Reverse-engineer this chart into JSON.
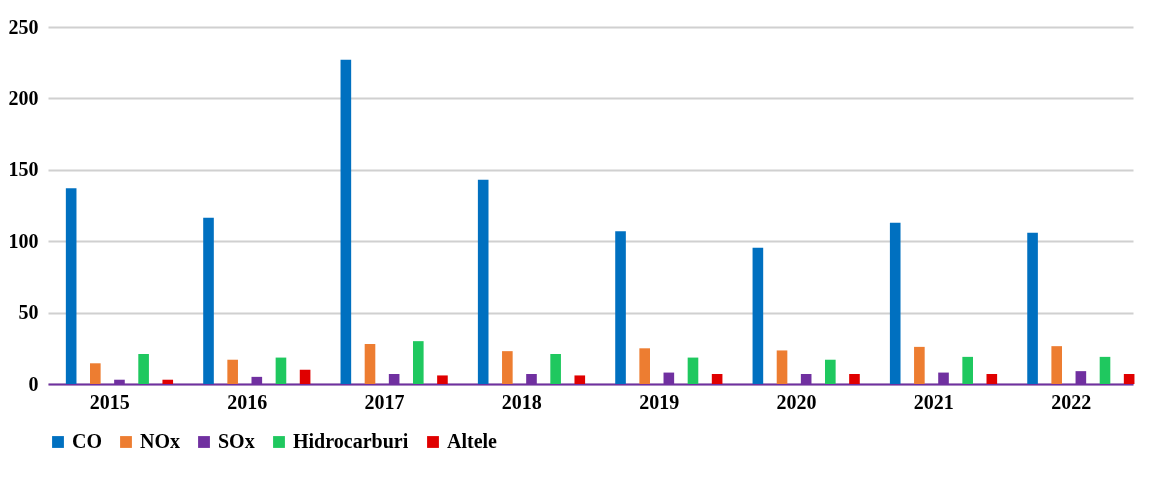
{
  "chart_data": {
    "type": "bar",
    "categories": [
      "2015",
      "2016",
      "2017",
      "2018",
      "2019",
      "2020",
      "2021",
      "2022"
    ],
    "series": [
      {
        "name": "CO",
        "color": "#0070c0",
        "values": [
          137,
          116.5,
          227,
          143,
          107,
          95.5,
          113,
          106
        ]
      },
      {
        "name": "NOx",
        "color": "#ed7d31",
        "values": [
          14.5,
          17,
          28,
          23,
          25,
          23.5,
          26,
          26.5
        ]
      },
      {
        "name": "SOx",
        "color": "#7030a0",
        "values": [
          3,
          5,
          7,
          7,
          8,
          7,
          8,
          9
        ]
      },
      {
        "name": "Hidrocarburi",
        "color": "#1fc85f",
        "values": [
          21,
          18.5,
          30,
          21,
          18.5,
          17,
          19,
          19
        ]
      },
      {
        "name": "Altele",
        "color": "#e00000",
        "values": [
          3,
          10,
          6,
          6,
          7,
          7,
          7,
          7
        ]
      }
    ],
    "ylim": [
      0,
      250
    ],
    "yticks": [
      0,
      50,
      100,
      150,
      200,
      250
    ],
    "grid": "y",
    "legend": "bottom"
  }
}
